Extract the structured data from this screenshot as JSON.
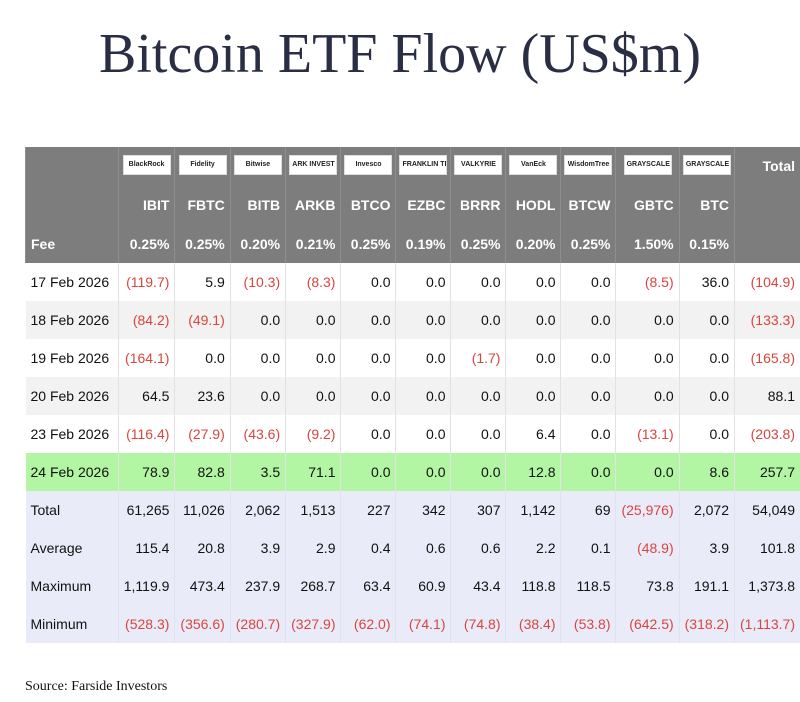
{
  "title": "Bitcoin ETF Flow (US$m)",
  "table": {
    "logos": [
      "BlackRock",
      "Fidelity",
      "Bitwise",
      "ARK INVEST",
      "Invesco",
      "FRANKLIN TEMPLETON",
      "VALKYRIE",
      "VanEck",
      "WisdomTree",
      "GRAYSCALE",
      "GRAYSCALE"
    ],
    "total_header": "Total",
    "tickers": [
      "IBIT",
      "FBTC",
      "BITB",
      "ARKB",
      "BTCO",
      "EZBC",
      "BRRR",
      "HODL",
      "BTCW",
      "GBTC",
      "BTC"
    ],
    "fee_label": "Fee",
    "fees": [
      "0.25%",
      "0.25%",
      "0.20%",
      "0.21%",
      "0.25%",
      "0.19%",
      "0.25%",
      "0.20%",
      "0.25%",
      "1.50%",
      "0.15%"
    ],
    "rows": [
      [
        "17 Feb 2026",
        "(119.7)",
        "5.9",
        "(10.3)",
        "(8.3)",
        "0.0",
        "0.0",
        "0.0",
        "0.0",
        "0.0",
        "(8.5)",
        "36.0",
        "(104.9)"
      ],
      [
        "18 Feb 2026",
        "(84.2)",
        "(49.1)",
        "0.0",
        "0.0",
        "0.0",
        "0.0",
        "0.0",
        "0.0",
        "0.0",
        "0.0",
        "0.0",
        "(133.3)"
      ],
      [
        "19 Feb 2026",
        "(164.1)",
        "0.0",
        "0.0",
        "0.0",
        "0.0",
        "0.0",
        "(1.7)",
        "0.0",
        "0.0",
        "0.0",
        "0.0",
        "(165.8)"
      ],
      [
        "20 Feb 2026",
        "64.5",
        "23.6",
        "0.0",
        "0.0",
        "0.0",
        "0.0",
        "0.0",
        "0.0",
        "0.0",
        "0.0",
        "0.0",
        "88.1"
      ],
      [
        "23 Feb 2026",
        "(116.4)",
        "(27.9)",
        "(43.6)",
        "(9.2)",
        "0.0",
        "0.0",
        "0.0",
        "6.4",
        "0.0",
        "(13.1)",
        "0.0",
        "(203.8)"
      ],
      [
        "24 Feb 2026",
        "78.9",
        "82.8",
        "3.5",
        "71.1",
        "0.0",
        "0.0",
        "0.0",
        "12.8",
        "0.0",
        "0.0",
        "8.6",
        "257.7"
      ]
    ],
    "summary_rows": [
      [
        "Total",
        "61,265",
        "11,026",
        "2,062",
        "1,513",
        "227",
        "342",
        "307",
        "1,142",
        "69",
        "(25,976)",
        "2,072",
        "54,049"
      ],
      [
        "Average",
        "115.4",
        "20.8",
        "3.9",
        "2.9",
        "0.4",
        "0.6",
        "0.6",
        "2.2",
        "0.1",
        "(48.9)",
        "3.9",
        "101.8"
      ],
      [
        "Maximum",
        "1,119.9",
        "473.4",
        "237.9",
        "268.7",
        "63.4",
        "60.9",
        "43.4",
        "118.8",
        "118.5",
        "73.8",
        "191.1",
        "1,373.8"
      ],
      [
        "Minimum",
        "(528.3)",
        "(356.6)",
        "(280.7)",
        "(327.9)",
        "(62.0)",
        "(74.1)",
        "(74.8)",
        "(38.4)",
        "(53.8)",
        "(642.5)",
        "(318.2)",
        "(1,113.7)"
      ]
    ]
  },
  "source": "Source: Farside Investors"
}
